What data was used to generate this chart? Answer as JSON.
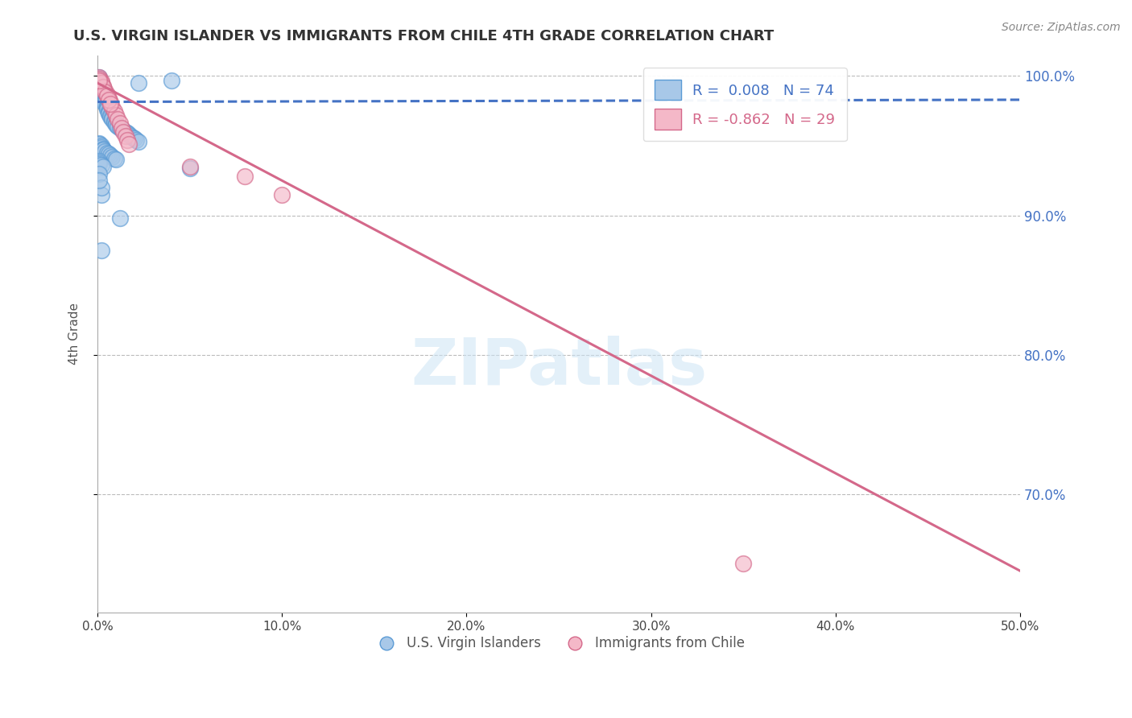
{
  "title": "U.S. VIRGIN ISLANDER VS IMMIGRANTS FROM CHILE 4TH GRADE CORRELATION CHART",
  "source": "Source: ZipAtlas.com",
  "ylabel": "4th Grade",
  "xlim": [
    0.0,
    0.5
  ],
  "ylim": [
    0.615,
    1.015
  ],
  "xticklabels": [
    "0.0%",
    "10.0%",
    "20.0%",
    "30.0%",
    "40.0%",
    "50.0%"
  ],
  "blue_color": "#a8c8e8",
  "blue_edge": "#5b9bd5",
  "pink_color": "#f4b8c8",
  "pink_edge": "#d4688a",
  "blue_trend_color": "#4472c4",
  "pink_trend_color": "#d4688a",
  "legend_label_blue": "U.S. Virgin Islanders",
  "legend_label_pink": "Immigrants from Chile",
  "R_blue": 0.008,
  "N_blue": 74,
  "R_pink": -0.862,
  "N_pink": 29,
  "watermark": "ZIPatlas",
  "blue_trend_x": [
    0.0,
    0.5
  ],
  "blue_trend_y": [
    0.9815,
    0.983
  ],
  "pink_trend_x": [
    0.0,
    0.5
  ],
  "pink_trend_y": [
    0.995,
    0.645
  ],
  "blue_x": [
    0.001,
    0.001,
    0.001,
    0.001,
    0.001,
    0.002,
    0.002,
    0.002,
    0.002,
    0.002,
    0.002,
    0.003,
    0.003,
    0.003,
    0.003,
    0.003,
    0.004,
    0.004,
    0.004,
    0.004,
    0.005,
    0.005,
    0.005,
    0.005,
    0.006,
    0.006,
    0.006,
    0.007,
    0.007,
    0.008,
    0.008,
    0.009,
    0.009,
    0.01,
    0.01,
    0.011,
    0.012,
    0.013,
    0.014,
    0.015,
    0.016,
    0.017,
    0.018,
    0.019,
    0.02,
    0.021,
    0.022,
    0.001,
    0.001,
    0.002,
    0.002,
    0.003,
    0.003,
    0.004,
    0.005,
    0.006,
    0.007,
    0.008,
    0.009,
    0.01,
    0.001,
    0.001,
    0.001,
    0.002,
    0.003,
    0.05,
    0.002,
    0.04,
    0.012,
    0.022,
    0.001,
    0.002,
    0.002,
    0.001
  ],
  "blue_y": [
    0.999,
    0.998,
    0.997,
    0.996,
    0.995,
    0.994,
    0.993,
    0.992,
    0.991,
    0.99,
    0.989,
    0.988,
    0.987,
    0.986,
    0.985,
    0.984,
    0.983,
    0.982,
    0.981,
    0.98,
    0.979,
    0.978,
    0.977,
    0.976,
    0.975,
    0.974,
    0.973,
    0.972,
    0.971,
    0.97,
    0.969,
    0.968,
    0.967,
    0.966,
    0.965,
    0.964,
    0.963,
    0.962,
    0.961,
    0.96,
    0.959,
    0.958,
    0.957,
    0.956,
    0.955,
    0.954,
    0.953,
    0.952,
    0.951,
    0.95,
    0.949,
    0.948,
    0.947,
    0.946,
    0.945,
    0.944,
    0.943,
    0.942,
    0.941,
    0.94,
    0.939,
    0.938,
    0.937,
    0.936,
    0.935,
    0.934,
    0.915,
    0.997,
    0.898,
    0.995,
    0.93,
    0.875,
    0.92,
    0.925
  ],
  "pink_x": [
    0.001,
    0.002,
    0.003,
    0.004,
    0.005,
    0.006,
    0.007,
    0.008,
    0.009,
    0.01,
    0.011,
    0.012,
    0.013,
    0.014,
    0.015,
    0.016,
    0.017,
    0.05,
    0.08,
    0.001,
    0.002,
    0.003,
    0.004,
    0.005,
    0.006,
    0.007,
    0.35,
    0.1,
    0.001
  ],
  "pink_y": [
    0.999,
    0.996,
    0.993,
    0.99,
    0.987,
    0.984,
    0.981,
    0.978,
    0.975,
    0.972,
    0.969,
    0.966,
    0.963,
    0.96,
    0.957,
    0.954,
    0.951,
    0.935,
    0.928,
    0.998,
    0.995,
    0.992,
    0.989,
    0.986,
    0.983,
    0.98,
    0.65,
    0.915,
    0.997
  ]
}
